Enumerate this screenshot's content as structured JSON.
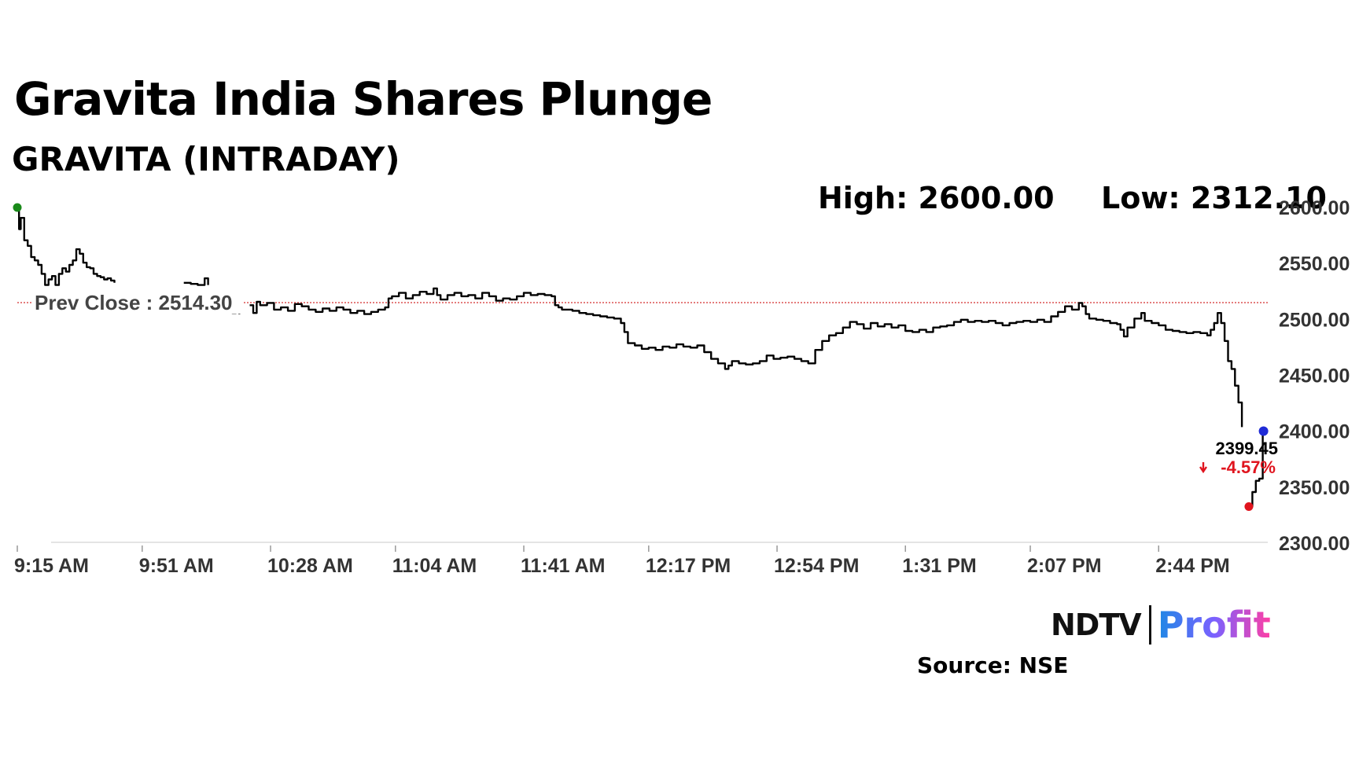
{
  "header": {
    "title": "Gravita India Shares Plunge",
    "subtitle": "GRAVITA (INTRADAY)",
    "high_text": "High: 2600.00",
    "low_text": "Low: 2312.10"
  },
  "chart_data": {
    "type": "line",
    "ylim": [
      2300,
      2600
    ],
    "y_ticks": [
      "2600.00",
      "2550.00",
      "2500.00",
      "2450.00",
      "2400.00",
      "2350.00",
      "2300.00"
    ],
    "y_tick_values": [
      2600,
      2550,
      2500,
      2450,
      2400,
      2350,
      2300
    ],
    "x_ticks": [
      "9:15 AM",
      "9:51 AM",
      "10:28 AM",
      "11:04 AM",
      "11:41 AM",
      "12:17 PM",
      "12:54 PM",
      "1:31 PM",
      "2:07 PM",
      "2:44 PM"
    ],
    "x_tick_minutes": [
      0,
      36,
      73,
      109,
      146,
      182,
      219,
      256,
      292,
      329
    ],
    "x_range_minutes": [
      0,
      360
    ],
    "prev_close": 2514.3,
    "prev_close_label": "Prev Close : 2514.30",
    "last_price_label": "2399.45",
    "change_label": "-4.57%",
    "colors": {
      "line": "#000000",
      "prev_close": "#d32f2f",
      "high_marker": "#1a8a1a",
      "low_marker": "#e0141e",
      "last_marker": "#1f2bd6",
      "down": "#e0141e"
    },
    "high_point": {
      "t": 0,
      "v": 2600
    },
    "low_point": {
      "t": 355,
      "v": 2332
    },
    "last_point": {
      "t": 359,
      "v": 2399.45
    },
    "series": [
      {
        "segments": [
          [
            [
              0,
              2600
            ],
            [
              0.5,
              2580
            ],
            [
              1,
              2590
            ],
            [
              2,
              2570
            ],
            [
              3,
              2565
            ],
            [
              4,
              2555
            ],
            [
              5,
              2552
            ],
            [
              6,
              2548
            ],
            [
              7,
              2540
            ],
            [
              8,
              2530
            ],
            [
              9,
              2535
            ],
            [
              10,
              2538
            ],
            [
              11,
              2530
            ],
            [
              12,
              2540
            ],
            [
              13,
              2545
            ],
            [
              14,
              2542
            ],
            [
              15,
              2548
            ],
            [
              16,
              2552
            ],
            [
              17,
              2562
            ],
            [
              18,
              2558
            ],
            [
              19,
              2550
            ],
            [
              20,
              2546
            ],
            [
              21,
              2545
            ],
            [
              22,
              2540
            ],
            [
              23,
              2538
            ],
            [
              24,
              2537
            ],
            [
              25,
              2535
            ],
            [
              26,
              2536
            ],
            [
              27,
              2534
            ],
            [
              28,
              2532
            ]
          ],
          [
            [
              48,
              2532
            ],
            [
              50,
              2531
            ],
            [
              52,
              2530
            ],
            [
              54,
              2536
            ],
            [
              55,
              2530
            ]
          ],
          [
            [
              61,
              2510
            ],
            [
              62,
              2505
            ],
            [
              63,
              2506
            ],
            [
              64,
              2504
            ]
          ],
          [
            [
              67,
              2512
            ],
            [
              68,
              2505
            ],
            [
              69,
              2515
            ],
            [
              70,
              2512
            ],
            [
              72,
              2514
            ],
            [
              74,
              2508
            ],
            [
              76,
              2510
            ],
            [
              78,
              2507
            ],
            [
              80,
              2513
            ],
            [
              82,
              2511
            ],
            [
              84,
              2508
            ],
            [
              86,
              2506
            ],
            [
              88,
              2509
            ],
            [
              90,
              2507
            ],
            [
              92,
              2510
            ],
            [
              94,
              2508
            ],
            [
              96,
              2505
            ],
            [
              98,
              2507
            ],
            [
              100,
              2504
            ],
            [
              102,
              2506
            ],
            [
              104,
              2508
            ],
            [
              106,
              2510
            ],
            [
              107,
              2518
            ],
            [
              108,
              2520
            ],
            [
              110,
              2523
            ],
            [
              112,
              2518
            ],
            [
              114,
              2521
            ],
            [
              116,
              2524
            ],
            [
              118,
              2522
            ],
            [
              120,
              2527
            ],
            [
              121,
              2521
            ],
            [
              122,
              2517
            ],
            [
              124,
              2521
            ],
            [
              126,
              2523
            ],
            [
              128,
              2520
            ],
            [
              130,
              2521
            ],
            [
              132,
              2518
            ],
            [
              134,
              2523
            ],
            [
              136,
              2520
            ],
            [
              138,
              2516
            ],
            [
              140,
              2518
            ],
            [
              142,
              2517
            ],
            [
              144,
              2520
            ],
            [
              146,
              2523
            ],
            [
              148,
              2521
            ],
            [
              150,
              2522
            ],
            [
              152,
              2521
            ],
            [
              154,
              2520
            ],
            [
              155,
              2512
            ],
            [
              156,
              2510
            ],
            [
              157,
              2508
            ],
            [
              160,
              2507
            ],
            [
              162,
              2505
            ],
            [
              164,
              2504
            ],
            [
              166,
              2503
            ],
            [
              168,
              2502
            ],
            [
              170,
              2501
            ],
            [
              172,
              2500
            ],
            [
              174,
              2496
            ],
            [
              175,
              2488
            ],
            [
              176,
              2478
            ],
            [
              178,
              2476
            ],
            [
              180,
              2473
            ],
            [
              182,
              2474
            ],
            [
              184,
              2472
            ],
            [
              186,
              2475
            ],
            [
              188,
              2474
            ],
            [
              190,
              2477
            ],
            [
              192,
              2475
            ],
            [
              194,
              2474
            ],
            [
              196,
              2476
            ],
            [
              198,
              2470
            ],
            [
              200,
              2464
            ],
            [
              202,
              2460
            ],
            [
              204,
              2455
            ],
            [
              205,
              2458
            ],
            [
              206,
              2462
            ],
            [
              208,
              2460
            ],
            [
              210,
              2459
            ],
            [
              212,
              2460
            ],
            [
              214,
              2462
            ],
            [
              216,
              2467
            ],
            [
              218,
              2464
            ],
            [
              220,
              2465
            ],
            [
              222,
              2466
            ],
            [
              224,
              2464
            ],
            [
              226,
              2462
            ],
            [
              228,
              2460
            ],
            [
              230,
              2472
            ],
            [
              232,
              2480
            ],
            [
              234,
              2485
            ],
            [
              236,
              2487
            ],
            [
              238,
              2492
            ],
            [
              240,
              2497
            ],
            [
              242,
              2495
            ],
            [
              244,
              2491
            ],
            [
              246,
              2496
            ],
            [
              248,
              2493
            ],
            [
              250,
              2495
            ],
            [
              252,
              2492
            ],
            [
              254,
              2494
            ],
            [
              256,
              2489
            ],
            [
              258,
              2488
            ],
            [
              260,
              2490
            ],
            [
              262,
              2488
            ],
            [
              264,
              2492
            ],
            [
              266,
              2493
            ],
            [
              268,
              2494
            ],
            [
              270,
              2497
            ],
            [
              272,
              2499
            ],
            [
              274,
              2497
            ],
            [
              276,
              2498
            ],
            [
              278,
              2497
            ],
            [
              280,
              2498
            ],
            [
              282,
              2496
            ],
            [
              284,
              2494
            ],
            [
              286,
              2496
            ],
            [
              288,
              2497
            ],
            [
              290,
              2498
            ],
            [
              292,
              2497
            ],
            [
              294,
              2499
            ],
            [
              296,
              2497
            ],
            [
              298,
              2502
            ],
            [
              300,
              2506
            ],
            [
              302,
              2511
            ],
            [
              304,
              2508
            ],
            [
              306,
              2514
            ],
            [
              307,
              2511
            ],
            [
              308,
              2504
            ],
            [
              309,
              2500
            ],
            [
              311,
              2499
            ],
            [
              313,
              2498
            ],
            [
              315,
              2496
            ],
            [
              317,
              2495
            ],
            [
              318,
              2490
            ],
            [
              319,
              2484
            ],
            [
              320,
              2492
            ],
            [
              322,
              2500
            ],
            [
              324,
              2505
            ],
            [
              325,
              2498
            ],
            [
              327,
              2496
            ],
            [
              329,
              2494
            ],
            [
              331,
              2490
            ],
            [
              333,
              2489
            ],
            [
              335,
              2488
            ],
            [
              337,
              2487
            ],
            [
              339,
              2488
            ],
            [
              341,
              2487
            ],
            [
              343,
              2485
            ],
            [
              344,
              2490
            ],
            [
              345,
              2496
            ],
            [
              346,
              2505
            ],
            [
              347,
              2496
            ],
            [
              348,
              2480
            ],
            [
              349,
              2462
            ],
            [
              350,
              2455
            ],
            [
              351,
              2440
            ],
            [
              352,
              2425
            ],
            [
              353,
              2403
            ]
          ],
          [
            [
              355,
              2332
            ],
            [
              356,
              2345
            ],
            [
              357,
              2355
            ],
            [
              358,
              2357
            ],
            [
              359,
              2399.45
            ]
          ]
        ]
      }
    ]
  },
  "branding": {
    "ndtv": "NDTV",
    "profit": "Profit",
    "source": "Source: NSE"
  }
}
